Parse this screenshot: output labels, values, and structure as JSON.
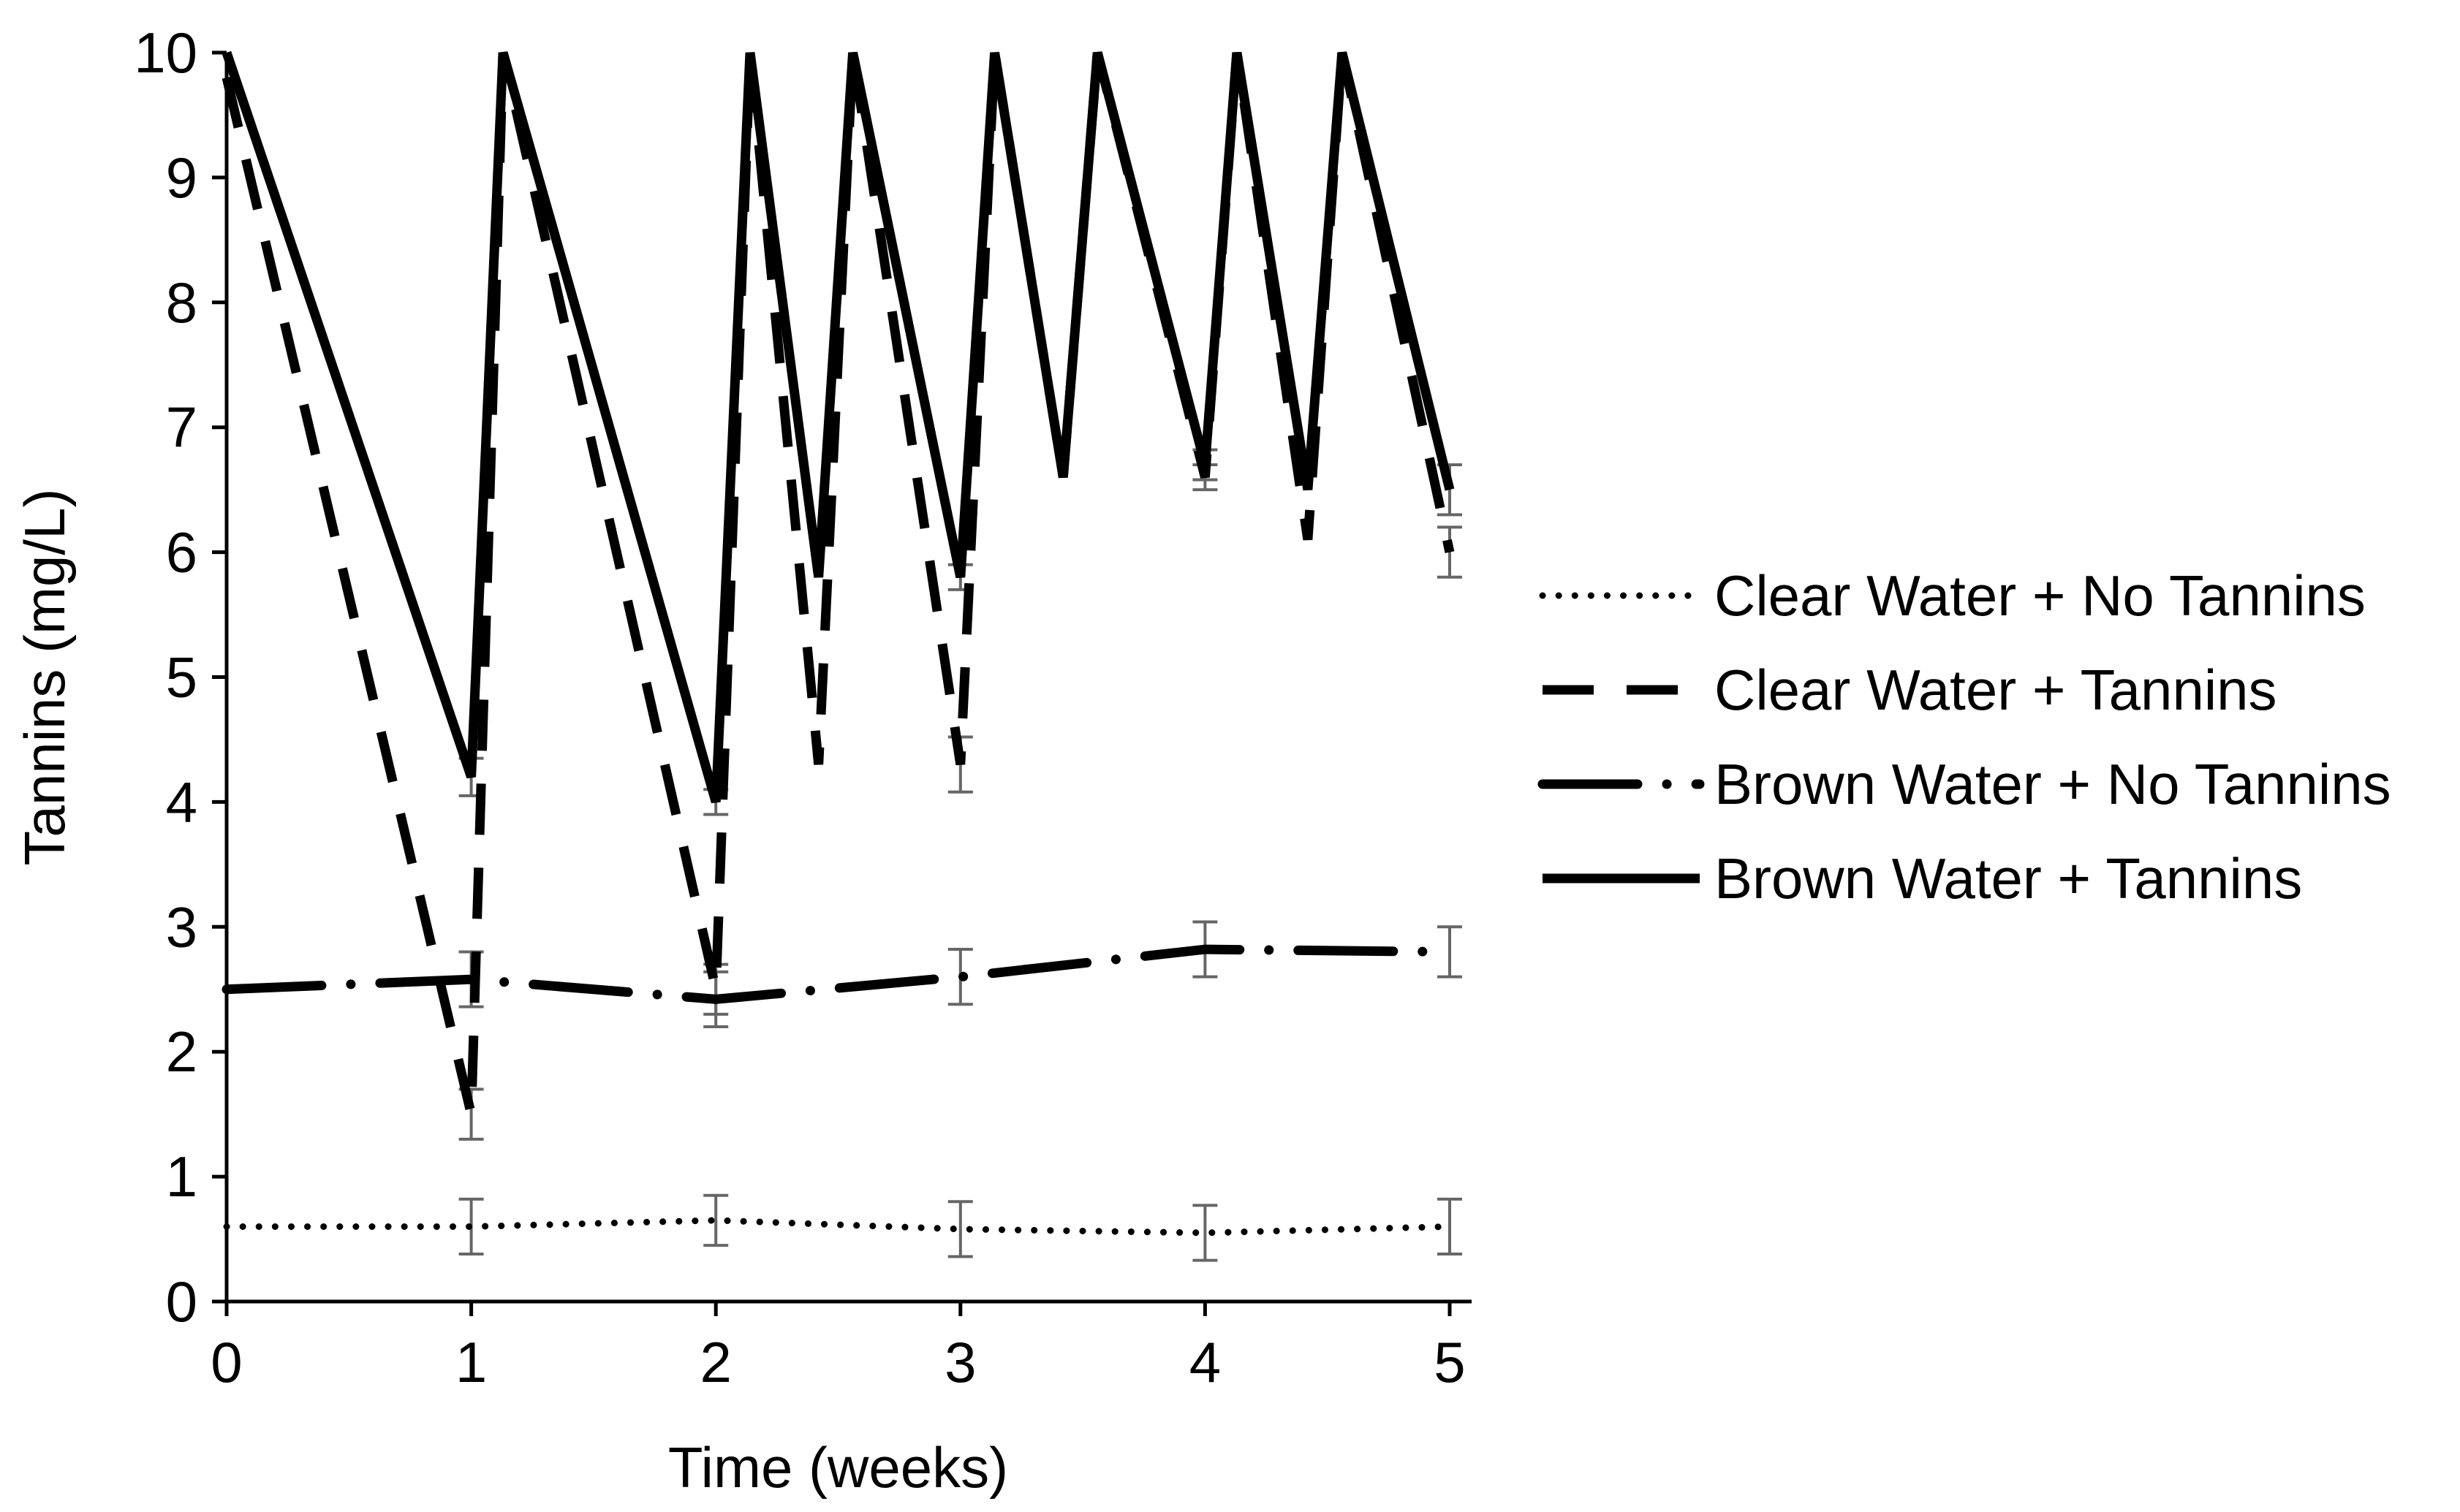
{
  "chart_data": {
    "type": "line",
    "title": "",
    "xlabel": "Time (weeks)",
    "ylabel": "Tannins (mg/L)",
    "xlim": [
      0,
      5
    ],
    "ylim": [
      0,
      10
    ],
    "x_ticks": [
      "0",
      "1",
      "2",
      "3",
      "4",
      "5"
    ],
    "y_ticks": [
      "0",
      "1",
      "2",
      "3",
      "4",
      "5",
      "6",
      "7",
      "8",
      "9",
      "10"
    ],
    "grid": false,
    "legend_position": "right",
    "series": [
      {
        "name": "Clear Water + No Tannins",
        "style": "dotted",
        "color": "#000000",
        "points": [
          [
            0,
            0.6
          ],
          [
            1,
            0.6
          ],
          [
            2,
            0.65
          ],
          [
            3,
            0.58
          ],
          [
            4,
            0.55
          ],
          [
            5,
            0.6
          ]
        ],
        "error_bars": [
          [
            1,
            0.22
          ],
          [
            2,
            0.2
          ],
          [
            3,
            0.22
          ],
          [
            4,
            0.22
          ],
          [
            5,
            0.22
          ]
        ]
      },
      {
        "name": "Clear Water + Tannins",
        "style": "dashed",
        "color": "#000000",
        "points": [
          [
            0,
            9.8
          ],
          [
            1,
            1.5
          ],
          [
            1.13,
            10
          ],
          [
            2,
            2.5
          ],
          [
            2.14,
            10
          ],
          [
            2.42,
            4.3
          ],
          [
            2.56,
            10
          ],
          [
            3,
            4.3
          ],
          [
            3.14,
            10
          ],
          [
            3.42,
            6.6
          ],
          [
            3.56,
            10
          ],
          [
            4,
            6.6
          ],
          [
            4.13,
            10
          ],
          [
            4.42,
            6.1
          ],
          [
            4.56,
            10
          ],
          [
            5,
            6.0
          ]
        ],
        "error_bars": [
          [
            1,
            0.2
          ],
          [
            2,
            0.2
          ],
          [
            3,
            0.22
          ],
          [
            4,
            0.1
          ],
          [
            5,
            0.2
          ]
        ]
      },
      {
        "name": "Brown Water + No Tannins",
        "style": "long-dash-dot",
        "color": "#000000",
        "points": [
          [
            0,
            2.5
          ],
          [
            1,
            2.58
          ],
          [
            2,
            2.42
          ],
          [
            3,
            2.6
          ],
          [
            4,
            2.82
          ],
          [
            5,
            2.8
          ]
        ],
        "error_bars": [
          [
            1,
            0.22
          ],
          [
            2,
            0.22
          ],
          [
            3,
            0.22
          ],
          [
            4,
            0.22
          ],
          [
            5,
            0.2
          ]
        ]
      },
      {
        "name": "Brown Water + Tannins",
        "style": "solid",
        "color": "#000000",
        "points": [
          [
            0,
            10
          ],
          [
            1,
            4.2
          ],
          [
            1.13,
            10
          ],
          [
            2,
            4.0
          ],
          [
            2.14,
            10
          ],
          [
            2.42,
            5.8
          ],
          [
            2.56,
            10
          ],
          [
            3,
            5.8
          ],
          [
            3.14,
            10
          ],
          [
            3.42,
            6.6
          ],
          [
            3.56,
            10
          ],
          [
            4,
            6.7
          ],
          [
            4.13,
            10
          ],
          [
            4.42,
            6.5
          ],
          [
            4.56,
            10
          ],
          [
            5,
            6.5
          ]
        ],
        "error_bars": [
          [
            1,
            0.15
          ],
          [
            2,
            0.1
          ],
          [
            3,
            0.1
          ],
          [
            4,
            0.12
          ],
          [
            5,
            0.2
          ]
        ]
      }
    ]
  }
}
